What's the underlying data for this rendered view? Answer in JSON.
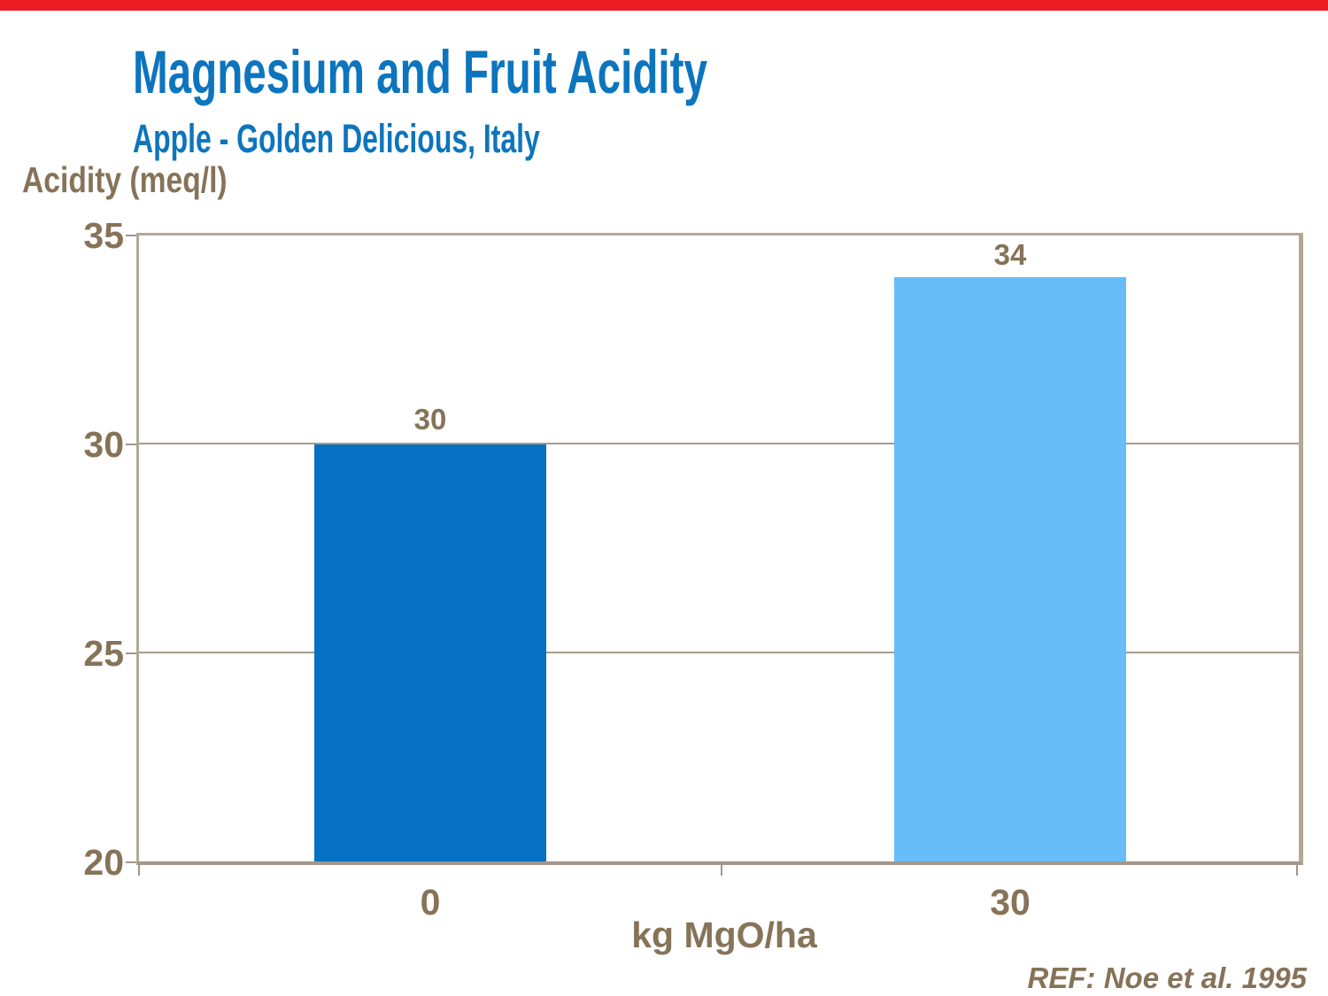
{
  "header": {
    "title": "Magnesium and Fruit Acidity",
    "subtitle": "Apple - Golden Delicious, Italy"
  },
  "chart_data": {
    "type": "bar",
    "title": "Magnesium and Fruit Acidity",
    "subtitle": "Apple - Golden Delicious, Italy",
    "categories": [
      "0",
      "30"
    ],
    "values": [
      30,
      34
    ],
    "data_labels": [
      "30",
      "34"
    ],
    "bar_colors": [
      "#0670C2",
      "#66BDF8"
    ],
    "xlabel": "kg MgO/ha",
    "ylabel": "Acidity (meq/l)",
    "ylim": [
      20,
      35
    ],
    "yticks": [
      20,
      25,
      30,
      35
    ],
    "ytick_labels": [
      "35",
      "30",
      "25",
      "20"
    ],
    "grid": "horizontal-only",
    "legend": "none"
  },
  "footer": {
    "reference": "REF: Noe et al. 1995"
  },
  "colors": {
    "banner_red": "#EC1C24",
    "title_blue": "#0D75BE",
    "text_brown": "#867358",
    "axis_tan": "#B4A796",
    "gridline_tan": "#A89B89",
    "bar_dark_blue": "#0670C2",
    "bar_light_blue": "#66BDF8"
  }
}
